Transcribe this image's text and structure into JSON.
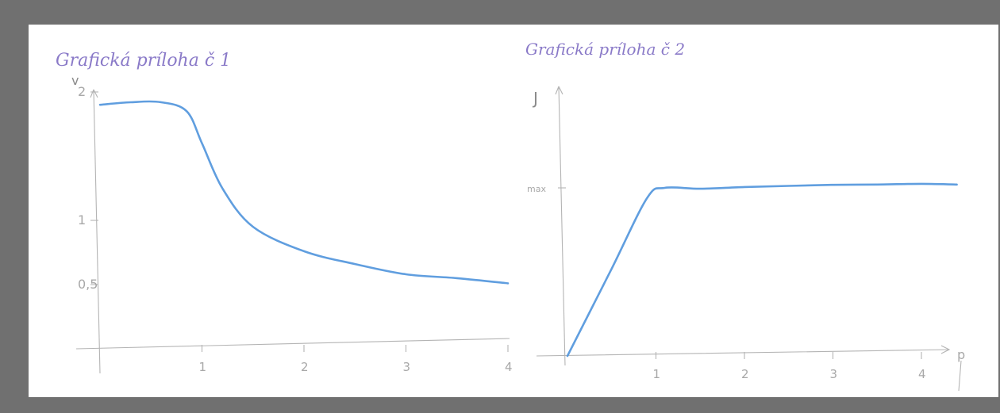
{
  "colors": {
    "background": "#707070",
    "sheet": "#ffffff",
    "ink_blue": "#4f93dc",
    "ink_purple": "#8a7ac8",
    "axis": "#b4b4b4"
  },
  "chart_data": [
    {
      "type": "line",
      "title": "Grafická príloha č 1",
      "ylabel": "v",
      "xlabel": "",
      "x_ticks": [
        "1",
        "2",
        "3",
        "4"
      ],
      "y_ticks": [
        "0,5",
        "1",
        "2"
      ],
      "xlim": [
        0,
        4
      ],
      "ylim": [
        0,
        2
      ],
      "grid": false,
      "series": [
        {
          "x": [
            0,
            0.3,
            0.6,
            0.85,
            1.0,
            1.2,
            1.5,
            2.0,
            2.5,
            3.0,
            3.5,
            4.0
          ],
          "y": [
            1.9,
            1.92,
            1.92,
            1.85,
            1.6,
            1.25,
            0.95,
            0.76,
            0.66,
            0.58,
            0.55,
            0.51
          ]
        }
      ]
    },
    {
      "type": "line",
      "title": "Grafická príloha č 2",
      "ylabel": "J",
      "xlabel": "p",
      "x_ticks": [
        "1",
        "2",
        "3",
        "4"
      ],
      "y_ticks": [
        "max"
      ],
      "xlim": [
        0,
        4
      ],
      "ylim": [
        0,
        1
      ],
      "grid": false,
      "series": [
        {
          "x": [
            0,
            0.5,
            0.9,
            1.1,
            1.5,
            2.0,
            2.5,
            3.0,
            3.5,
            4.0,
            4.4
          ],
          "y": [
            0,
            0.52,
            0.94,
            1.0,
            0.995,
            1.005,
            1.012,
            1.018,
            1.02,
            1.024,
            1.02
          ]
        }
      ]
    }
  ]
}
